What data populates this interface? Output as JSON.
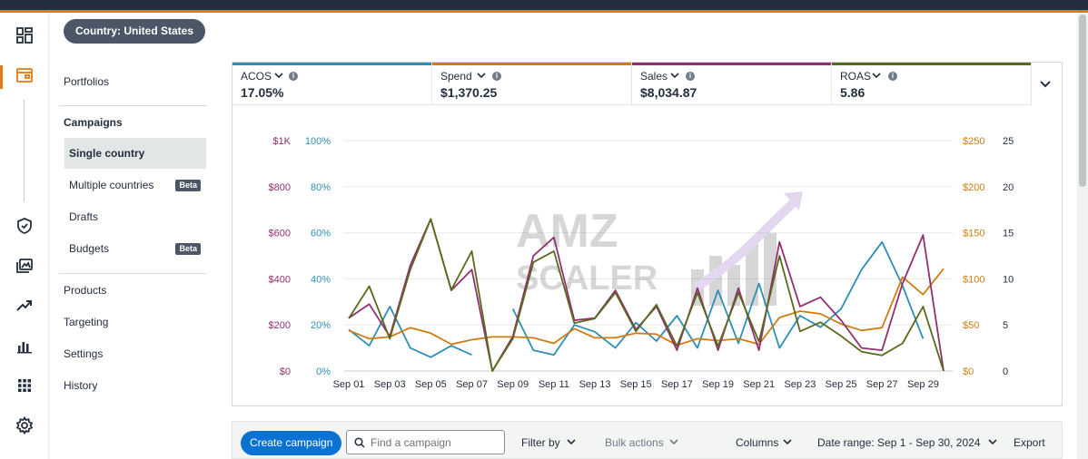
{
  "topbar": {
    "accent": "#e47911",
    "background": "#232f3e"
  },
  "rail": {
    "icons": [
      "dashboard-icon",
      "campaign-manager-icon",
      "shield-icon",
      "creative-library-icon",
      "trending-up-icon",
      "bar-chart-icon",
      "apps-grid-icon",
      "settings-gear-icon"
    ]
  },
  "nav": {
    "country_button": "Country: United States",
    "portfolios": "Portfolios",
    "campaigns_heading": "Campaigns",
    "single_country": "Single country",
    "multiple_countries": "Multiple countries",
    "multiple_countries_badge": "Beta",
    "drafts": "Drafts",
    "budgets": "Budgets",
    "budgets_badge": "Beta",
    "products": "Products",
    "targeting": "Targeting",
    "settings": "Settings",
    "history": "History"
  },
  "metrics": [
    {
      "label": "ACOS",
      "value": "17.05%",
      "color": "#2e8fb6"
    },
    {
      "label": "Spend",
      "value": "$1,370.25",
      "color": "#d17b12"
    },
    {
      "label": "Sales",
      "value": "$8,034.87",
      "color": "#92306f"
    },
    {
      "label": "ROAS",
      "value": "5.86",
      "color": "#5a6a1d"
    }
  ],
  "watermark": {
    "line1": "AMZ",
    "line2": "SCALER"
  },
  "chart_data": {
    "type": "line",
    "x": [
      "Sep 01",
      "Sep 02",
      "Sep 03",
      "Sep 04",
      "Sep 05",
      "Sep 06",
      "Sep 07",
      "Sep 08",
      "Sep 09",
      "Sep 10",
      "Sep 11",
      "Sep 12",
      "Sep 13",
      "Sep 14",
      "Sep 15",
      "Sep 16",
      "Sep 17",
      "Sep 18",
      "Sep 19",
      "Sep 20",
      "Sep 21",
      "Sep 22",
      "Sep 23",
      "Sep 24",
      "Sep 25",
      "Sep 26",
      "Sep 27",
      "Sep 28",
      "Sep 29",
      "Sep 30"
    ],
    "x_tick_labels": [
      "Sep 01",
      "Sep 03",
      "Sep 05",
      "Sep 07",
      "Sep 09",
      "Sep 11",
      "Sep 13",
      "Sep 15",
      "Sep 17",
      "Sep 19",
      "Sep 21",
      "Sep 23",
      "Sep 25",
      "Sep 27",
      "Sep 29"
    ],
    "axes": {
      "sales": {
        "side": "left",
        "ticks": [
          "$0",
          "$200",
          "$400",
          "$600",
          "$800",
          "$1K"
        ],
        "range": [
          0,
          1000
        ]
      },
      "acos": {
        "side": "left",
        "ticks": [
          "0%",
          "20%",
          "40%",
          "60%",
          "80%",
          "100%"
        ],
        "range": [
          0,
          100
        ]
      },
      "spend": {
        "side": "right",
        "ticks": [
          "$0",
          "$50",
          "$100",
          "$150",
          "$200",
          "$250"
        ],
        "range": [
          0,
          250
        ]
      },
      "roas": {
        "side": "right",
        "ticks": [
          "0",
          "5",
          "10",
          "15",
          "20",
          "25"
        ],
        "range": [
          0,
          25
        ]
      }
    },
    "series": [
      {
        "name": "ACOS",
        "axis": "acos",
        "color": "#2e8fb6",
        "values": [
          18,
          11,
          28,
          10,
          6,
          11,
          7,
          null,
          27,
          9,
          7,
          20,
          17,
          10,
          21,
          13,
          24,
          10,
          35,
          12,
          38,
          10,
          24,
          19,
          27,
          44,
          56,
          37,
          14,
          null
        ]
      },
      {
        "name": "Spend",
        "axis": "spend",
        "color": "#d17b12",
        "values": [
          44,
          35,
          37,
          47,
          41,
          29,
          34,
          37,
          37,
          36,
          30,
          46,
          36,
          36,
          41,
          40,
          28,
          35,
          33,
          35,
          29,
          58,
          65,
          62,
          51,
          44,
          47,
          102,
          83,
          111
        ]
      },
      {
        "name": "Sales",
        "axis": "sales",
        "color": "#92306f",
        "values": [
          230,
          290,
          150,
          460,
          660,
          350,
          440,
          0,
          150,
          500,
          580,
          220,
          230,
          350,
          180,
          280,
          90,
          360,
          90,
          360,
          90,
          560,
          280,
          320,
          220,
          100,
          90,
          380,
          590,
          0
        ]
      },
      {
        "name": "ROAS",
        "axis": "roas",
        "color": "#5a6a1d",
        "values": [
          5.7,
          9.2,
          3.5,
          11,
          16.5,
          8.8,
          13,
          0,
          3.5,
          11.8,
          13,
          5.2,
          5.7,
          8.5,
          4.3,
          7.2,
          2.7,
          8.5,
          2.7,
          8.5,
          3.2,
          12.5,
          4.3,
          5.3,
          3.8,
          2.1,
          1.7,
          3,
          7,
          0
        ]
      }
    ]
  },
  "toolbar": {
    "create_campaign": "Create campaign",
    "search_placeholder": "Find a campaign",
    "filter_by": "Filter by",
    "bulk_actions": "Bulk actions",
    "columns": "Columns",
    "date_range": "Date range: Sep 1 - Sep 30, 2024",
    "export": "Export"
  }
}
